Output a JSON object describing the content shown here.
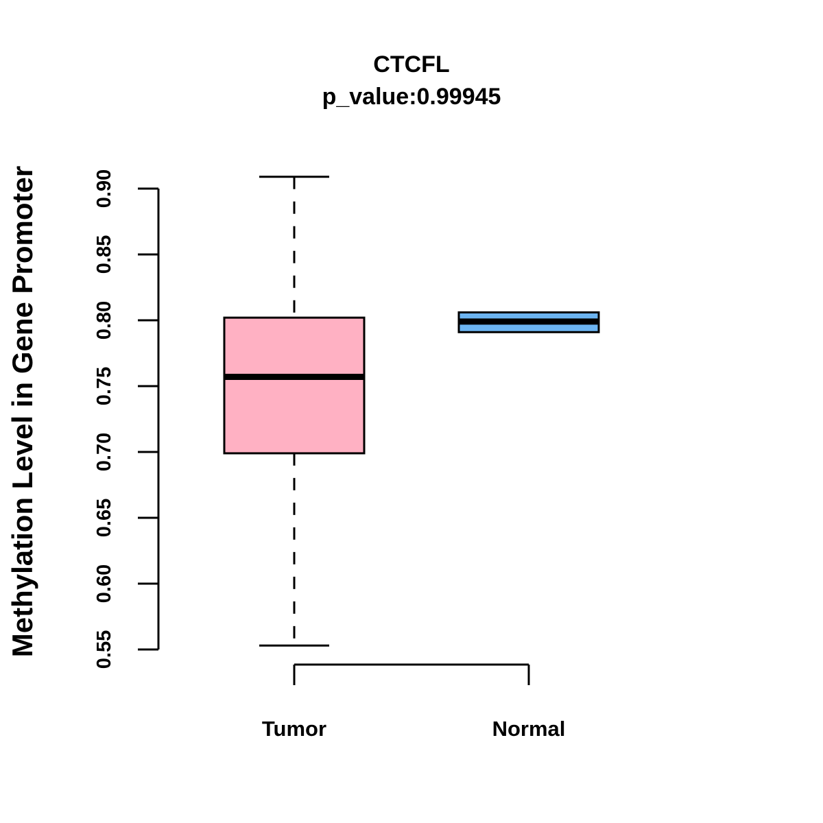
{
  "chart_data": {
    "type": "boxplot",
    "title": "CTCFL",
    "subtitle": "p_value:0.99945",
    "ylabel": "Methylation Level in Gene Promoter",
    "xlabel": "",
    "ylim": [
      0.55,
      0.9
    ],
    "yticks": [
      "0.55",
      "0.60",
      "0.65",
      "0.70",
      "0.75",
      "0.80",
      "0.85",
      "0.90"
    ],
    "categories": [
      "Tumor",
      "Normal"
    ],
    "boxes": [
      {
        "name": "Tumor",
        "whisker_low": 0.553,
        "q1": 0.699,
        "median": 0.757,
        "q3": 0.802,
        "whisker_high": 0.909,
        "color": "#FFB1C3"
      },
      {
        "name": "Normal",
        "whisker_low": 0.791,
        "q1": 0.791,
        "median": 0.799,
        "q3": 0.806,
        "whisker_high": 0.806,
        "color": "#6CB4F1"
      }
    ]
  }
}
